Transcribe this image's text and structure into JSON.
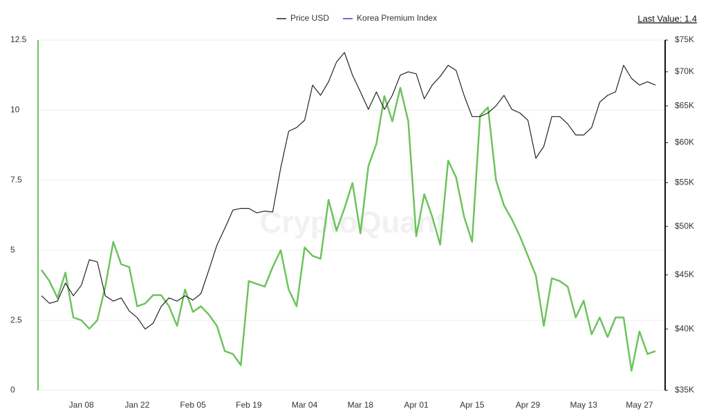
{
  "chart_data": {
    "type": "line",
    "annotation": "Last Value: 1.4",
    "watermark": "CryptoQuant",
    "categories": [
      null,
      null,
      null,
      null,
      null,
      "Jan 08",
      null,
      null,
      null,
      null,
      null,
      null,
      "Jan 22",
      null,
      null,
      null,
      null,
      null,
      null,
      "Feb 05",
      null,
      null,
      null,
      null,
      null,
      null,
      "Feb 19",
      null,
      null,
      null,
      null,
      null,
      null,
      "Mar 04",
      null,
      null,
      null,
      null,
      null,
      null,
      "Mar 18",
      null,
      null,
      null,
      null,
      null,
      null,
      "Apr 01",
      null,
      null,
      null,
      null,
      null,
      null,
      "Apr 15",
      null,
      null,
      null,
      null,
      null,
      null,
      "Apr 29",
      null,
      null,
      null,
      null,
      null,
      null,
      "May 13",
      null,
      null,
      null,
      null,
      null,
      null,
      "May 27",
      null,
      null
    ],
    "ylim": [
      0,
      12.5
    ],
    "yticks": [
      0,
      2.5,
      5,
      7.5,
      10,
      12.5
    ],
    "y2lim": [
      35000,
      75000
    ],
    "y2scale": "log",
    "y2ticks": [
      {
        "value": 35000,
        "label": "$35K"
      },
      {
        "value": 40000,
        "label": "$40K"
      },
      {
        "value": 45000,
        "label": "$45K"
      },
      {
        "value": 50000,
        "label": "$50K"
      },
      {
        "value": 55000,
        "label": "$55K"
      },
      {
        "value": 60000,
        "label": "$60K"
      },
      {
        "value": 65000,
        "label": "$65K"
      },
      {
        "value": 70000,
        "label": "$70K"
      },
      {
        "value": 75000,
        "label": "$75K"
      }
    ],
    "grid": true,
    "series": [
      {
        "name": "Price USD",
        "color": "#222222",
        "axis": "y2",
        "values": [
          43000,
          42300,
          42500,
          44200,
          43000,
          44000,
          46500,
          46300,
          43000,
          42500,
          42800,
          41600,
          41000,
          40000,
          40500,
          42000,
          42800,
          42500,
          43000,
          42600,
          43200,
          45500,
          48000,
          49800,
          51800,
          52000,
          52000,
          51500,
          51700,
          51600,
          56800,
          61500,
          62000,
          63000,
          68000,
          66500,
          68500,
          71500,
          73000,
          69500,
          67000,
          64500,
          67000,
          64500,
          66500,
          69500,
          70000,
          69700,
          66000,
          68000,
          69300,
          71000,
          70200,
          66500,
          63500,
          63500,
          64000,
          65000,
          66500,
          64500,
          64000,
          63000,
          58000,
          59500,
          63500,
          63500,
          62500,
          61000,
          61000,
          62000,
          65500,
          66500,
          67000,
          71000,
          69000,
          68000,
          68500,
          68000
        ]
      },
      {
        "name": "Korea Premium Index",
        "color": "#6cc35c",
        "legend_color": "#3b3bd9",
        "values": [
          4.3,
          3.9,
          3.3,
          4.2,
          2.6,
          2.5,
          2.2,
          2.5,
          3.7,
          5.3,
          4.5,
          4.4,
          3.0,
          3.1,
          3.4,
          3.4,
          3.0,
          2.3,
          3.6,
          2.8,
          3.0,
          2.7,
          2.3,
          1.4,
          1.3,
          0.9,
          3.9,
          3.8,
          3.7,
          4.4,
          5.0,
          3.6,
          3.0,
          5.1,
          4.8,
          4.7,
          6.8,
          5.7,
          6.5,
          7.4,
          5.6,
          8.0,
          8.8,
          10.5,
          9.6,
          10.8,
          9.6,
          5.5,
          7.0,
          6.2,
          5.2,
          8.2,
          7.6,
          6.2,
          5.3,
          9.8,
          10.1,
          7.5,
          6.6,
          6.1,
          5.5,
          4.8,
          4.1,
          2.3,
          4.0,
          3.9,
          3.7,
          2.6,
          3.2,
          2.0,
          2.6,
          1.9,
          2.6,
          2.6,
          0.7,
          2.1,
          1.3,
          1.4
        ]
      }
    ]
  }
}
